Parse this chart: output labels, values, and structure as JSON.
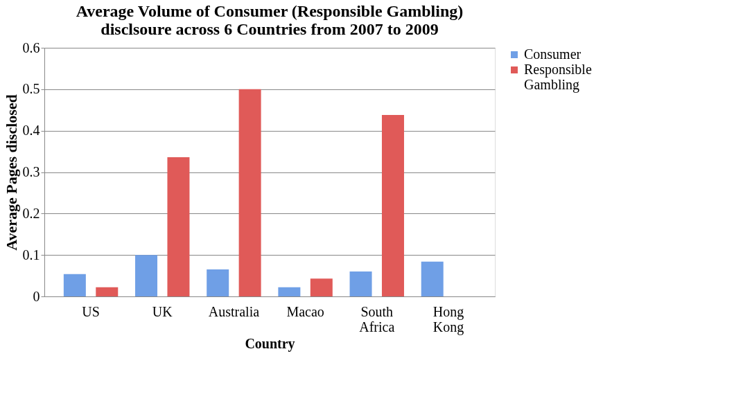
{
  "chart_data": {
    "type": "bar",
    "title": "Average Volume of Consumer (Responsible Gambling)\ndisclsoure across 6 Countries  from 2007 to 2009",
    "xlabel": "Country",
    "ylabel": "Average Pages disclosed",
    "categories": [
      "US",
      "UK",
      "Australia",
      "Macao",
      "South Africa",
      "Hong Kong"
    ],
    "series": [
      {
        "name": "Consumer",
        "color": "#6f9fe6",
        "values": [
          0.054,
          0.1,
          0.065,
          0.022,
          0.06,
          0.084
        ]
      },
      {
        "name": "Responsible Gambling",
        "color": "#e05a58",
        "values": [
          0.022,
          0.336,
          0.5,
          0.043,
          0.438,
          0
        ]
      }
    ],
    "ylim": [
      0,
      0.6
    ],
    "yticks": [
      0,
      0.1,
      0.2,
      0.3,
      0.4,
      0.5,
      0.6
    ],
    "grid": "y",
    "legend": "right"
  }
}
